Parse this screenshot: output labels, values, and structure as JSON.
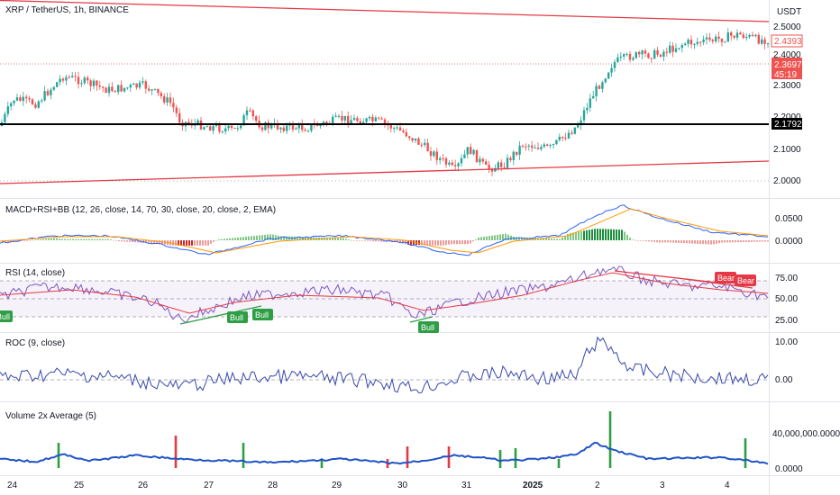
{
  "header": {
    "symbol_title": "XRP / TetherUS, 1h, BINANCE",
    "currency": "USDT"
  },
  "colors": {
    "up": "#26a69a",
    "down": "#ef5350",
    "trendline": "#e53945",
    "level": "#000000",
    "macd": "#2962ff",
    "signal": "#ff9800",
    "rsi": "#7e57c2",
    "rsi_ma": "#e53945",
    "roc": "#3949ab",
    "volume_line": "#1e53c6",
    "bull": "#2e9e45",
    "bear": "#e53945"
  },
  "price_pane": {
    "y_ticks": [
      "2.5000",
      "2.4000",
      "2.3000",
      "2.2000",
      "2.1000",
      "2.0000"
    ],
    "tick_values": [
      2.5,
      2.4,
      2.3,
      2.2,
      2.1,
      2.0
    ],
    "labels": {
      "last_price": "2.4393",
      "countdown_price": "2.3697",
      "countdown_time": "45:19",
      "level_price": "2.1792"
    },
    "level_value": 2.1792
  },
  "macd_pane": {
    "title": "MACD+RSI+BB (12, 26, close, 14, 70, 30, close, 20, close, 2, EMA)",
    "y_ticks": [
      "0.0500",
      "0.0000"
    ]
  },
  "rsi_pane": {
    "title": "RSI (14, close)",
    "y_ticks": [
      "75.00",
      "50.00",
      "25.00"
    ],
    "signals": [
      {
        "text": "Bull",
        "type": "bull"
      },
      {
        "text": "Bull",
        "type": "bull"
      },
      {
        "text": "Bull",
        "type": "bull"
      },
      {
        "text": "Bull",
        "type": "bull"
      },
      {
        "text": "Bear",
        "type": "bear"
      },
      {
        "text": "Bear",
        "type": "bear"
      }
    ]
  },
  "roc_pane": {
    "title": "ROC (9, close)",
    "y_ticks": [
      "10.00",
      "0.00"
    ]
  },
  "volume_pane": {
    "title": "Volume 2x Average  (5)",
    "y_ticks": [
      "40,000,000.0000",
      "0.0000"
    ]
  },
  "x_axis": {
    "labels": [
      "24",
      "25",
      "26",
      "27",
      "28",
      "29",
      "30",
      "31",
      "2025",
      "2",
      "3",
      "4"
    ]
  }
}
